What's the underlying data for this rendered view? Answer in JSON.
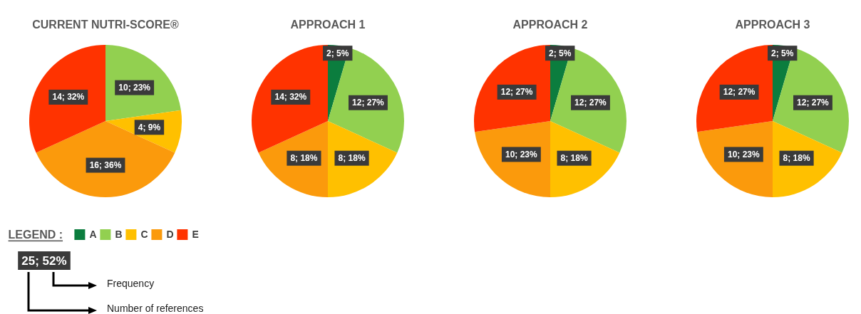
{
  "chart_data": [
    {
      "type": "pie",
      "title": "CURRENT NUTRI-SCORE®",
      "categories": [
        "A",
        "B",
        "C",
        "D",
        "E"
      ],
      "values": [
        0,
        10,
        4,
        16,
        14
      ],
      "value_labels": [
        null,
        "10; 23%",
        "4; 9%",
        "16; 36%",
        "14; 32%"
      ],
      "colors": [
        "#0b7d3e",
        "#92d050",
        "#ffc000",
        "#fb9a0c",
        "#ff3300"
      ],
      "legend": "bottom",
      "legend_title": "LEGEND :",
      "annotations": [
        "25; 52%",
        "Frequency",
        "Number of references"
      ]
    },
    {
      "type": "pie",
      "title": "APPROACH 1",
      "values": [
        2,
        12,
        8,
        8,
        14
      ],
      "value_labels": [
        "2; 5%",
        "12; 27%",
        "8; 18%",
        "8; 18%",
        "14; 32%"
      ],
      "colors": [
        "#0b7d3e",
        "#92d050",
        "#ffc000",
        "#fb9a0c",
        "#ff3300"
      ]
    },
    {
      "type": "pie",
      "title": "APPROACH 2",
      "values": [
        2,
        12,
        8,
        10,
        12
      ],
      "value_labels": [
        "2; 5%",
        "12; 27%",
        "8; 18%",
        "10; 23%",
        "12; 27%"
      ],
      "colors": [
        "#0b7d3e",
        "#92d050",
        "#ffc000",
        "#fb9a0c",
        "#ff3300"
      ]
    },
    {
      "type": "pie",
      "title": "APPROACH 3",
      "values": [
        2,
        12,
        8,
        10,
        12
      ],
      "value_labels": [
        "2; 5%",
        "12; 27%",
        "8; 18%",
        "10; 23%",
        "12; 27%"
      ],
      "colors": [
        "#0b7d3e",
        "#92d050",
        "#ffc000",
        "#fb9a0c",
        "#ff3300"
      ]
    }
  ]
}
